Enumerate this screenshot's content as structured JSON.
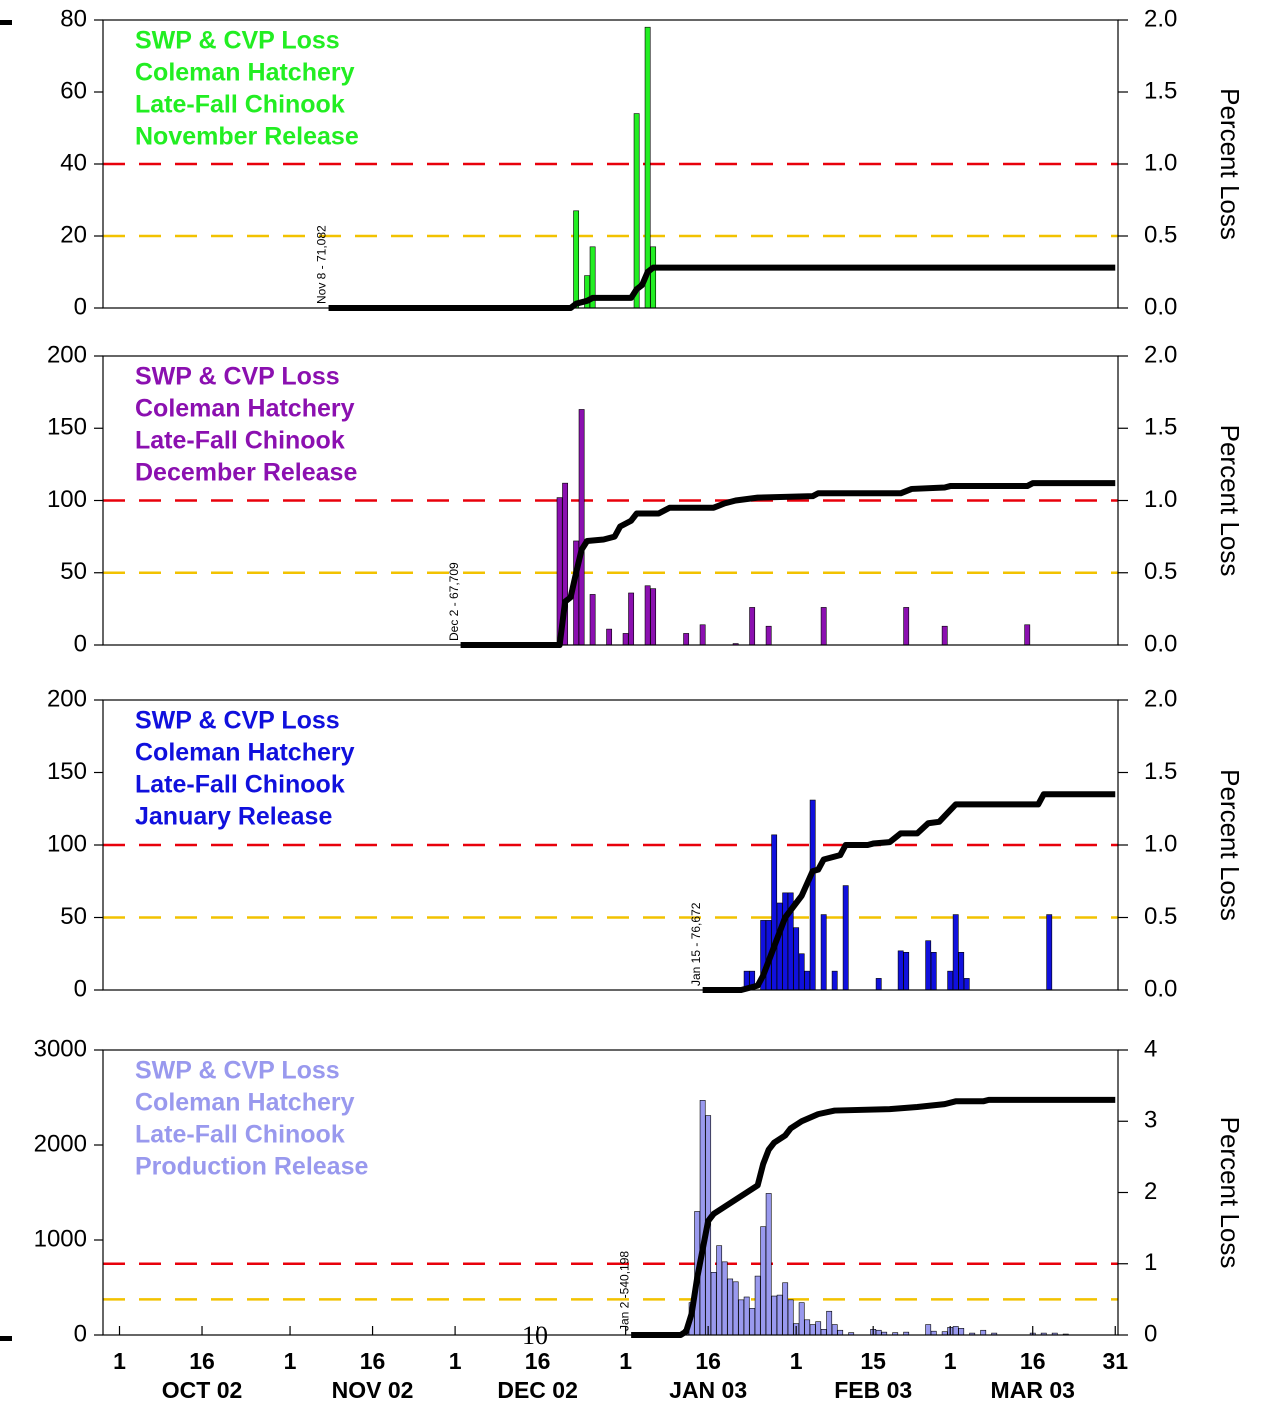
{
  "chart_data": [
    {
      "type": "bar",
      "label_lines": [
        "SWP & CVP Loss",
        "Coleman Hatchery",
        "Late-Fall Chinook",
        "November Release"
      ],
      "xlim": [
        -3,
        181.5
      ],
      "ylim": [
        0,
        80
      ],
      "yticks": [
        0,
        20,
        40,
        60,
        80
      ],
      "y2lim": [
        0,
        2
      ],
      "y2ticks": [
        {
          "value": 0,
          "label": "0.0"
        },
        {
          "value": 0.5,
          "label": "0.5"
        },
        {
          "value": 1,
          "label": "1.0"
        },
        {
          "value": 1.5,
          "label": "1.5"
        },
        {
          "value": 2,
          "label": "2.0"
        }
      ],
      "y2label": "Percent Loss",
      "thresholds": [
        {
          "value": 1,
          "color": "#e8000b"
        },
        {
          "value": 0.5,
          "color": "#f2c200"
        }
      ],
      "annotation": {
        "text": "Nov 8 - 71,082",
        "x": 38
      },
      "series": [
        {
          "color": "#22ee22",
          "x": [
            83,
            85,
            86,
            94,
            96,
            97
          ],
          "values": [
            27,
            9,
            17,
            54,
            78,
            17
          ]
        },
        {
          "type": "line",
          "axis": "y2",
          "color": "#000000",
          "x": [
            38,
            82,
            83,
            85,
            86,
            93,
            94,
            95,
            96,
            97,
            181
          ],
          "values": [
            0,
            0,
            0.03,
            0.05,
            0.07,
            0.07,
            0.13,
            0.16,
            0.25,
            0.28,
            0.28
          ]
        }
      ]
    },
    {
      "type": "bar",
      "label_lines": [
        "SWP & CVP Loss",
        "Coleman Hatchery",
        "Late-Fall Chinook",
        "December Release"
      ],
      "xlim": [
        -3,
        181.5
      ],
      "ylim": [
        0,
        200
      ],
      "yticks": [
        0,
        50,
        100,
        150,
        200
      ],
      "y2lim": [
        0,
        2
      ],
      "y2ticks": [
        {
          "value": 0,
          "label": "0.0"
        },
        {
          "value": 0.5,
          "label": "0.5"
        },
        {
          "value": 1,
          "label": "1.0"
        },
        {
          "value": 1.5,
          "label": "1.5"
        },
        {
          "value": 2,
          "label": "2.0"
        }
      ],
      "y2label": "Percent Loss",
      "thresholds": [
        {
          "value": 1,
          "color": "#e8000b"
        },
        {
          "value": 0.5,
          "color": "#f2c200"
        }
      ],
      "annotation": {
        "text": "Dec 2 - 67,709",
        "x": 62
      },
      "series": [
        {
          "color": "#8b10b0",
          "x": [
            80,
            81,
            83,
            84,
            86,
            89,
            92,
            93,
            96,
            97,
            103,
            106,
            112,
            115,
            118,
            128,
            143,
            150,
            165
          ],
          "values": [
            102,
            112,
            72,
            163,
            35,
            11,
            8,
            36,
            41,
            39,
            8,
            14,
            1,
            26,
            13,
            26,
            26,
            13,
            14
          ]
        },
        {
          "type": "line",
          "axis": "y2",
          "color": "#000000",
          "x": [
            62,
            80,
            81,
            82,
            83,
            84,
            85,
            88,
            90,
            91,
            93,
            94,
            98,
            100,
            108,
            110,
            112,
            116,
            126,
            127,
            142,
            144,
            150,
            151,
            165,
            166,
            181
          ],
          "values": [
            0,
            0,
            0.3,
            0.33,
            0.5,
            0.66,
            0.72,
            0.73,
            0.75,
            0.82,
            0.86,
            0.91,
            0.91,
            0.95,
            0.95,
            0.98,
            1.0,
            1.02,
            1.03,
            1.05,
            1.05,
            1.08,
            1.09,
            1.1,
            1.1,
            1.12,
            1.12
          ]
        }
      ]
    },
    {
      "type": "bar",
      "label_lines": [
        "SWP & CVP Loss",
        "Coleman Hatchery",
        "Late-Fall Chinook",
        "January Release"
      ],
      "xlim": [
        -3,
        181.5
      ],
      "ylim": [
        0,
        200
      ],
      "yticks": [
        0,
        50,
        100,
        150,
        200
      ],
      "y2lim": [
        0,
        2
      ],
      "y2ticks": [
        {
          "value": 0,
          "label": "0.0"
        },
        {
          "value": 0.5,
          "label": "0.5"
        },
        {
          "value": 1,
          "label": "1.0"
        },
        {
          "value": 1.5,
          "label": "1.5"
        },
        {
          "value": 2,
          "label": "2.0"
        }
      ],
      "y2label": "Percent Loss",
      "thresholds": [
        {
          "value": 1,
          "color": "#e8000b"
        },
        {
          "value": 0.5,
          "color": "#f2c200"
        }
      ],
      "annotation": {
        "text": "Jan 15 - 76,672",
        "x": 106
      },
      "series": [
        {
          "color": "#1010dd",
          "x": [
            114,
            115,
            117,
            118,
            119,
            120,
            121,
            122,
            123,
            124,
            125,
            126,
            128,
            130,
            132,
            138,
            142,
            143,
            147,
            148,
            151,
            152,
            153,
            154,
            169
          ],
          "values": [
            13,
            13,
            48,
            48,
            107,
            60,
            67,
            67,
            43,
            25,
            13,
            131,
            52,
            13,
            72,
            8,
            27,
            26,
            34,
            26,
            13,
            52,
            26,
            8,
            52
          ]
        },
        {
          "type": "line",
          "axis": "y2",
          "color": "#000000",
          "x": [
            106,
            113,
            116,
            117,
            118,
            119,
            120,
            121,
            122,
            123,
            124,
            126,
            127,
            128,
            131,
            132,
            136,
            137,
            140,
            142,
            145,
            147,
            149,
            151,
            152,
            167,
            168,
            181
          ],
          "values": [
            0,
            0,
            0.03,
            0.1,
            0.2,
            0.3,
            0.4,
            0.5,
            0.55,
            0.6,
            0.65,
            0.82,
            0.83,
            0.9,
            0.93,
            1.0,
            1.0,
            1.01,
            1.02,
            1.08,
            1.08,
            1.15,
            1.16,
            1.24,
            1.28,
            1.28,
            1.35,
            1.35
          ]
        }
      ]
    },
    {
      "type": "bar",
      "label_lines": [
        "SWP & CVP Loss",
        "Coleman Hatchery",
        "Late-Fall Chinook",
        "Production Release"
      ],
      "xlim": [
        -3,
        181.5
      ],
      "ylim": [
        0,
        3000
      ],
      "yticks": [
        0,
        1000,
        2000,
        3000
      ],
      "y2lim": [
        0,
        4
      ],
      "y2ticks": [
        0,
        1,
        2,
        3,
        4
      ],
      "y2label": "Percent Loss",
      "thresholds": [
        {
          "value": 1,
          "color": "#e8000b"
        },
        {
          "value": 0.5,
          "color": "#f2c200"
        }
      ],
      "annotation": {
        "text": "Jan 2 -540,198",
        "x": 93
      },
      "series": [
        {
          "color": "#9999ee",
          "x": [
            103,
            104,
            105,
            106,
            107,
            108,
            109,
            110,
            111,
            112,
            113,
            114,
            115,
            116,
            117,
            118,
            119,
            120,
            121,
            122,
            123,
            124,
            125,
            126,
            127,
            128,
            129,
            130,
            131,
            133,
            137,
            138,
            139,
            141,
            143,
            147,
            148,
            150,
            151,
            152,
            153,
            155,
            157,
            159,
            166,
            168,
            170,
            172
          ],
          "values": [
            60,
            340,
            1300,
            2470,
            2310,
            660,
            940,
            770,
            590,
            560,
            370,
            400,
            280,
            620,
            1140,
            1490,
            410,
            420,
            550,
            370,
            120,
            340,
            160,
            110,
            140,
            60,
            250,
            110,
            50,
            25,
            60,
            50,
            30,
            25,
            30,
            110,
            40,
            35,
            80,
            90,
            70,
            20,
            50,
            20,
            20,
            20,
            20,
            10
          ]
        },
        {
          "type": "line",
          "axis": "y2",
          "color": "#000000",
          "x": [
            93,
            102,
            103,
            104,
            105,
            106,
            107,
            108,
            110,
            112,
            114,
            116,
            117,
            118,
            119,
            121,
            122,
            124,
            127,
            130,
            140,
            145,
            150,
            152,
            157,
            158,
            181
          ],
          "values": [
            0,
            0,
            0.05,
            0.3,
            0.8,
            1.2,
            1.6,
            1.7,
            1.8,
            1.9,
            2.0,
            2.1,
            2.4,
            2.6,
            2.7,
            2.8,
            2.9,
            3.0,
            3.1,
            3.15,
            3.17,
            3.2,
            3.24,
            3.28,
            3.28,
            3.3,
            3.3
          ]
        }
      ],
      "xticks": [
        {
          "value": 0,
          "label": "1"
        },
        {
          "value": 15,
          "label": "16"
        },
        {
          "value": 31,
          "label": "1"
        },
        {
          "value": 46,
          "label": "16"
        },
        {
          "value": 61,
          "label": "1"
        },
        {
          "value": 76,
          "label": "16"
        },
        {
          "value": 92,
          "label": "1"
        },
        {
          "value": 107,
          "label": "16"
        },
        {
          "value": 123,
          "label": "1"
        },
        {
          "value": 137,
          "label": "15"
        },
        {
          "value": 151,
          "label": "1"
        },
        {
          "value": 166,
          "label": "16"
        },
        {
          "value": 181,
          "label": "31"
        }
      ],
      "x_groups": [
        {
          "value": 15,
          "label": "OCT 02"
        },
        {
          "value": 46,
          "label": "NOV 02"
        },
        {
          "value": 76,
          "label": "DEC 02"
        },
        {
          "value": 107,
          "label": "JAN 03"
        },
        {
          "value": 137,
          "label": "FEB 03"
        },
        {
          "value": 166,
          "label": "MAR 03"
        }
      ]
    }
  ],
  "page_number": "10"
}
